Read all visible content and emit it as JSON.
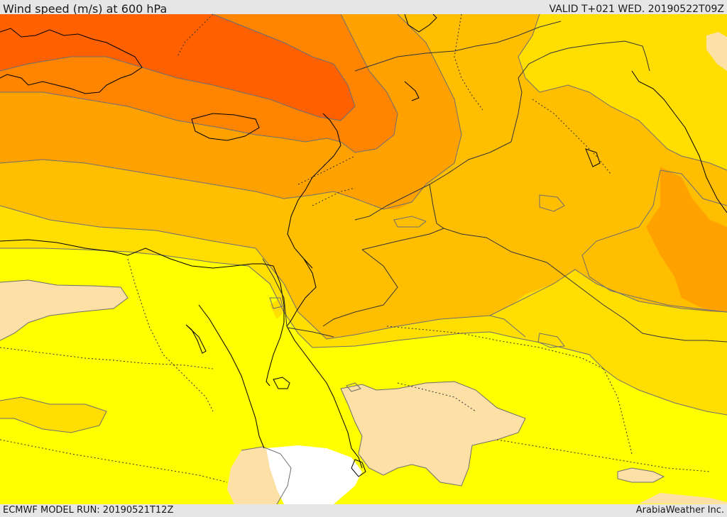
{
  "header": {
    "title": "Wind speed (m/s) at 600 hPa",
    "valid_time": "VALID T+021 WED. 20190522T09Z"
  },
  "footer": {
    "model_run": "ECMWF MODEL RUN: 20190521T12Z",
    "provider": "ArabiaWeather Inc."
  },
  "map": {
    "parameter": "wind speed",
    "level": "600 hPa",
    "unit": "m/s",
    "fill_colors": {
      "lowest": "#fce0a6",
      "low": "#ffff00",
      "moderate_low": "#ffde00",
      "moderate": "#ffbe00",
      "moderate_high": "#ffa200",
      "high": "#ff8400",
      "highest": "#ff6000",
      "no_data": "#ffffff"
    },
    "lines": {
      "contours": "#6e6e6e",
      "coastlines": "#000000",
      "borders_dotted": "#333333"
    }
  }
}
